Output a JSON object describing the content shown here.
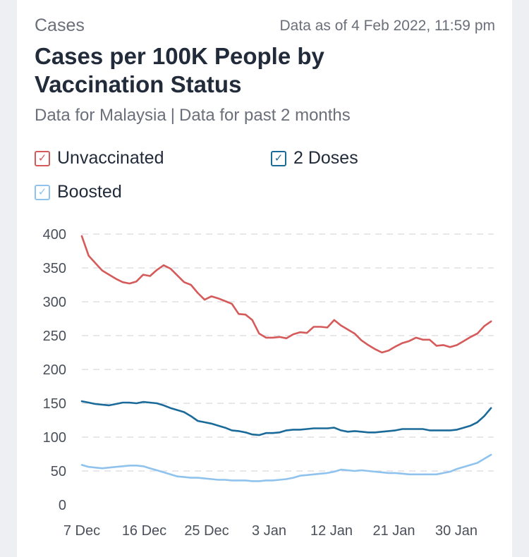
{
  "header": {
    "section": "Cases",
    "timestamp": "Data as of 4 Feb 2022, 11:59 pm",
    "title": "Cases per 100K People by Vaccination Status",
    "subtitle_place": "Data for Malaysia",
    "subtitle_sep": "|",
    "subtitle_period": "Data for past 2 months"
  },
  "legend": [
    {
      "label": "Unvaccinated",
      "color": "#d65a5a",
      "checked": true,
      "check": "✓"
    },
    {
      "label": "2 Doses",
      "color": "#1a6a9a",
      "checked": true,
      "check": "✓"
    },
    {
      "label": "Boosted",
      "color": "#8fc3ee",
      "checked": true,
      "check": "✓"
    }
  ],
  "chart_data": {
    "type": "line",
    "x_start": "2021-12-07",
    "x_end": "2022-02-04",
    "x_tick_labels": [
      "7 Dec",
      "16 Dec",
      "25 Dec",
      "3 Jan",
      "12 Jan",
      "21 Jan",
      "30 Jan"
    ],
    "y_ticks": [
      0,
      50,
      100,
      150,
      200,
      250,
      300,
      350,
      400
    ],
    "ylim": [
      0,
      400
    ],
    "grid": "horizontal dashed",
    "series": [
      {
        "name": "Unvaccinated",
        "color": "#d65a5a",
        "values": [
          397,
          368,
          357,
          346,
          340,
          334,
          329,
          327,
          330,
          340,
          338,
          347,
          354,
          349,
          339,
          329,
          325,
          313,
          303,
          308,
          305,
          301,
          297,
          282,
          281,
          273,
          253,
          247,
          247,
          248,
          246,
          252,
          255,
          254,
          263,
          263,
          262,
          273,
          265,
          259,
          253,
          243,
          236,
          230,
          225,
          228,
          234,
          239,
          242,
          247,
          244,
          244,
          235,
          236,
          233,
          236,
          242,
          248,
          253,
          264,
          271
        ]
      },
      {
        "name": "2 Doses",
        "color": "#1a6a9a",
        "values": [
          153,
          151,
          149,
          148,
          147,
          149,
          151,
          151,
          150,
          152,
          151,
          150,
          147,
          143,
          140,
          137,
          131,
          124,
          122,
          120,
          117,
          114,
          110,
          109,
          107,
          104,
          103,
          106,
          106,
          107,
          110,
          111,
          111,
          112,
          113,
          113,
          113,
          114,
          110,
          108,
          109,
          108,
          107,
          107,
          108,
          109,
          110,
          112,
          112,
          112,
          112,
          110,
          110,
          110,
          110,
          111,
          114,
          117,
          122,
          131,
          143
        ]
      },
      {
        "name": "Boosted",
        "color": "#8fc3ee",
        "values": [
          59,
          56,
          55,
          54,
          55,
          56,
          57,
          58,
          58,
          57,
          54,
          51,
          48,
          45,
          42,
          41,
          40,
          40,
          39,
          38,
          37,
          37,
          36,
          36,
          36,
          35,
          35,
          36,
          36,
          37,
          38,
          40,
          43,
          44,
          45,
          46,
          47,
          49,
          52,
          51,
          50,
          51,
          50,
          49,
          48,
          47,
          47,
          46,
          45,
          45,
          45,
          45,
          45,
          47,
          49,
          53,
          56,
          59,
          62,
          68,
          74
        ]
      }
    ]
  }
}
